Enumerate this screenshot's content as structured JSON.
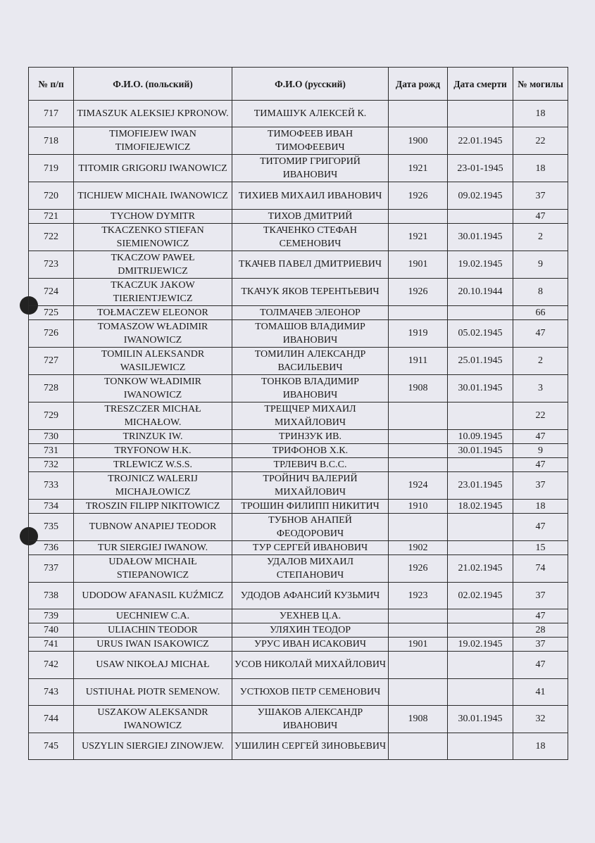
{
  "table": {
    "headers": [
      "№ п/п",
      "Ф.И.О. (польский)",
      "Ф.И.О (русский)",
      "Дата рожд",
      "Дата смерти",
      "№ могилы"
    ],
    "rows": [
      {
        "n": "717",
        "pl": "TIMASZUK ALEKSIEJ KPRONOW.",
        "ru": "ТИМАШУК АЛЕКСЕЙ К.",
        "born": "",
        "died": "",
        "grave": "18",
        "lines": 2
      },
      {
        "n": "718",
        "pl": "TIMOFIEJEW IWAN TIMOFIEJEWICZ",
        "ru": "ТИМОФЕЕВ ИВАН ТИМОФЕЕВИЧ",
        "born": "1900",
        "died": "22.01.1945",
        "grave": "22",
        "lines": 2
      },
      {
        "n": "719",
        "pl": "TITOMIR GRIGORIJ IWANOWICZ",
        "ru": "ТИТОМИР ГРИГОРИЙ ИВАНОВИЧ",
        "born": "1921",
        "died": "23-01-1945",
        "grave": "18",
        "lines": 2
      },
      {
        "n": "720",
        "pl": "TICHIJEW MICHAIŁ IWANOWICZ",
        "ru": "ТИХИЕВ МИХАИЛ ИВАНОВИЧ",
        "born": "1926",
        "died": "09.02.1945",
        "grave": "37",
        "lines": 2
      },
      {
        "n": "721",
        "pl": "TYCHOW DYMITR",
        "ru": "ТИХОВ ДМИТРИЙ",
        "born": "",
        "died": "",
        "grave": "47",
        "lines": 1
      },
      {
        "n": "722",
        "pl": "TKACZENKO STIEFAN SIEMIENOWICZ",
        "ru": "ТКАЧЕНКО СТЕФАН СЕМЕНОВИЧ",
        "born": "1921",
        "died": "30.01.1945",
        "grave": "2",
        "lines": 2
      },
      {
        "n": "723",
        "pl": "TKACZOW PAWEŁ DMITRIJEWICZ",
        "ru": "ТКАЧЕВ ПАВЕЛ ДМИТРИЕВИЧ",
        "born": "1901",
        "died": "19.02.1945",
        "grave": "9",
        "lines": 2
      },
      {
        "n": "724",
        "pl": "TKACZUK JAKOW TIERIENTJEWICZ",
        "ru": "ТКАЧУК ЯКОВ ТЕРЕНТЬЕВИЧ",
        "born": "1926",
        "died": "20.10.1944",
        "grave": "8",
        "lines": 2
      },
      {
        "n": "725",
        "pl": "TOŁMACZEW ELEONOR",
        "ru": "ТОЛМАЧЕВ ЭЛЕОНОР",
        "born": "",
        "died": "",
        "grave": "66",
        "lines": 1
      },
      {
        "n": "726",
        "pl": "TOMASZOW WŁADIMIR IWANOWICZ",
        "ru": "ТОМАШОВ ВЛАДИМИР ИВАНОВИЧ",
        "born": "1919",
        "died": "05.02.1945",
        "grave": "47",
        "lines": 2
      },
      {
        "n": "727",
        "pl": "TOMILIN ALEKSANDR WASILJEWICZ",
        "ru": "ТОМИЛИН АЛЕКСАНДР ВАСИЛЬЕВИЧ",
        "born": "1911",
        "died": "25.01.1945",
        "grave": "2",
        "lines": 2
      },
      {
        "n": "728",
        "pl": "TONKOW WŁADIMIR IWANOWICZ",
        "ru": "ТОНКОВ ВЛАДИМИР ИВАНОВИЧ",
        "born": "1908",
        "died": "30.01.1945",
        "grave": "3",
        "lines": 2
      },
      {
        "n": "729",
        "pl": "TRESZCZER MICHAŁ MICHAŁOW.",
        "ru": "ТРЕЩЧЕР МИХАИЛ МИХАЙЛОВИЧ",
        "born": "",
        "died": "",
        "grave": "22",
        "lines": 2
      },
      {
        "n": "730",
        "pl": "TRINZUK IW.",
        "ru": "ТРИНЗУК ИВ.",
        "born": "",
        "died": "10.09.1945",
        "grave": "47",
        "lines": 1
      },
      {
        "n": "731",
        "pl": "TRYFONOW H.K.",
        "ru": "ТРИФОНОВ Х.К.",
        "born": "",
        "died": "30.01.1945",
        "grave": "9",
        "lines": 1
      },
      {
        "n": "732",
        "pl": "TRLEWICZ W.S.S.",
        "ru": "ТРЛЕВИЧ В.С.С.",
        "born": "",
        "died": "",
        "grave": "47",
        "lines": 1
      },
      {
        "n": "733",
        "pl": "TROJNICZ WALERIJ MICHAJŁOWICZ",
        "ru": "ТРОЙНИЧ ВАЛЕРИЙ МИХАЙЛОВИЧ",
        "born": "1924",
        "died": "23.01.1945",
        "grave": "37",
        "lines": 2
      },
      {
        "n": "734",
        "pl": "TROSZIN FILIPP NIKITOWICZ",
        "ru": "ТРОШИН ФИЛИПП НИКИТИЧ",
        "born": "1910",
        "died": "18.02.1945",
        "grave": "18",
        "lines": 1
      },
      {
        "n": "735",
        "pl": "TUBNOW ANAPIEJ TEODOR",
        "ru": "ТУБНОВ АНАПЕЙ ФЕОДОРОВИЧ",
        "born": "",
        "died": "",
        "grave": "47",
        "lines": 2
      },
      {
        "n": "736",
        "pl": "TUR SIERGIEJ IWANOW.",
        "ru": "ТУР СЕРГЕЙ ИВАНОВИЧ",
        "born": "1902",
        "died": "",
        "grave": "15",
        "lines": 1
      },
      {
        "n": "737",
        "pl": "UDAŁOW MICHAIŁ STIEPANOWICZ",
        "ru": "УДАЛОВ МИХАИЛ СТЕПАНОВИЧ",
        "born": "1926",
        "died": "21.02.1945",
        "grave": "74",
        "lines": 2
      },
      {
        "n": "738",
        "pl": "UDODOW AFANASIL KUŹMICZ",
        "ru": "УДОДОВ АФАНСИЙ КУЗЬМИЧ",
        "born": "1923",
        "died": "02.02.1945",
        "grave": "37",
        "lines": 2
      },
      {
        "n": "739",
        "pl": "UECHNIEW C.A.",
        "ru": "УЕХНЕВ Ц.А.",
        "born": "",
        "died": "",
        "grave": "47",
        "lines": 1
      },
      {
        "n": "740",
        "pl": "ULIACHIN TEODOR",
        "ru": "УЛЯХИН ТЕОДОР",
        "born": "",
        "died": "",
        "grave": "28",
        "lines": 1
      },
      {
        "n": "741",
        "pl": "URUS IWAN ISAKOWICZ",
        "ru": "УРУС ИВАН ИСАКОВИЧ",
        "born": "1901",
        "died": "19.02.1945",
        "grave": "37",
        "lines": 1
      },
      {
        "n": "742",
        "pl": "USAW NIKOŁAJ MICHAŁ",
        "ru": "УСОВ НИКОЛАЙ МИХАЙЛОВИЧ",
        "born": "",
        "died": "",
        "grave": "47",
        "lines": 2
      },
      {
        "n": "743",
        "pl": "USTIUHAŁ PIOTR SEMENOW.",
        "ru": "УСТЮХОВ ПЕТР СЕМЕНОВИЧ",
        "born": "",
        "died": "",
        "grave": "41",
        "lines": 2
      },
      {
        "n": "744",
        "pl": "USZAKOW ALEKSANDR IWANOWICZ",
        "ru": "УШАКОВ АЛЕКСАНДР ИВАНОВИЧ",
        "born": "1908",
        "died": "30.01.1945",
        "grave": "32",
        "lines": 2
      },
      {
        "n": "745",
        "pl": "USZYLIN SIERGIEJ ZINOWJEW.",
        "ru": "УШИЛИН СЕРГЕЙ ЗИНОВЬЕВИЧ",
        "born": "",
        "died": "",
        "grave": "18",
        "lines": 2
      }
    ]
  }
}
